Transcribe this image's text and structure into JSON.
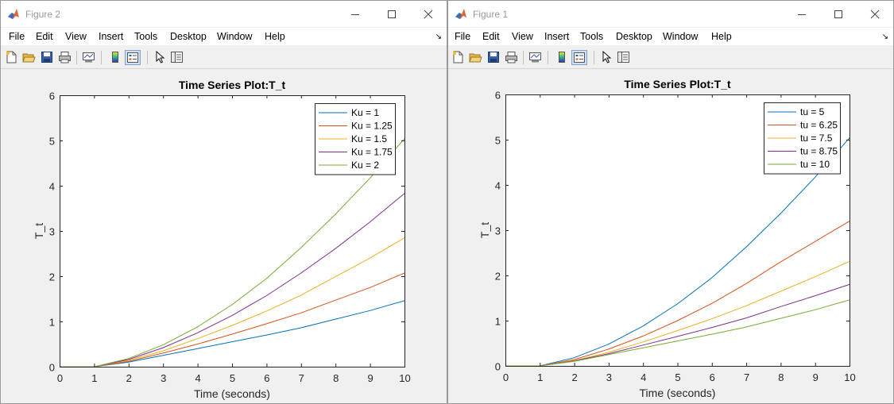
{
  "menu": [
    "File",
    "Edit",
    "View",
    "Insert",
    "Tools",
    "Desktop",
    "Window",
    "Help"
  ],
  "menu_overflow": "↘",
  "icons": {
    "app": "matlab-logo-icon",
    "toolbar": [
      "new-figure-icon",
      "open-file-icon",
      "save-icon",
      "print-icon",
      "link-plot-icon",
      "insert-colorbar-icon",
      "insert-legend-icon",
      "edit-plot-pointer-icon",
      "property-inspector-icon"
    ]
  },
  "colors": {
    "series": [
      "#0072BD",
      "#D95319",
      "#EDB120",
      "#7E2F8E",
      "#77AC30"
    ],
    "figure_bg": "#f0f0f0",
    "axes_bg": "#ffffff"
  },
  "windows": [
    {
      "title": "Figure 2",
      "chart_data": {
        "type": "line",
        "title": "Time Series Plot:T_t",
        "xlabel": "Time (seconds)",
        "ylabel": "T_t",
        "xlim": [
          0,
          10
        ],
        "ylim": [
          0,
          6
        ],
        "xticks": [
          "0",
          "1",
          "2",
          "3",
          "4",
          "5",
          "6",
          "7",
          "8",
          "9",
          "10"
        ],
        "yticks": [
          "0",
          "1",
          "2",
          "3",
          "4",
          "5",
          "6"
        ],
        "grid": false,
        "legend_position": "top-right",
        "x": [
          0,
          1,
          2,
          3,
          4,
          5,
          6,
          7,
          8,
          9,
          10
        ],
        "series": [
          {
            "name": "Ku = 1",
            "values": [
              0,
              0,
              0.1,
              0.25,
              0.4,
              0.55,
              0.7,
              0.86,
              1.05,
              1.24,
              1.46
            ]
          },
          {
            "name": "Ku = 1.25",
            "values": [
              0,
              0,
              0.12,
              0.3,
              0.5,
              0.72,
              0.95,
              1.19,
              1.47,
              1.75,
              2.07
            ]
          },
          {
            "name": "Ku = 1.5",
            "values": [
              0,
              0,
              0.14,
              0.35,
              0.62,
              0.91,
              1.23,
              1.58,
              1.99,
              2.4,
              2.85
            ]
          },
          {
            "name": "Ku = 1.75",
            "values": [
              0,
              0,
              0.16,
              0.42,
              0.75,
              1.13,
              1.57,
              2.07,
              2.61,
              3.2,
              3.83
            ]
          },
          {
            "name": "Ku = 2",
            "values": [
              0,
              0,
              0.18,
              0.48,
              0.88,
              1.37,
              1.95,
              2.63,
              3.37,
              4.17,
              5.04
            ]
          }
        ]
      }
    },
    {
      "title": "Figure 1",
      "chart_data": {
        "type": "line",
        "title": "Time Series Plot:T_t",
        "xlabel": "Time (seconds)",
        "ylabel": "T_t",
        "xlim": [
          0,
          10
        ],
        "ylim": [
          0,
          6
        ],
        "xticks": [
          "0",
          "1",
          "2",
          "3",
          "4",
          "5",
          "6",
          "7",
          "8",
          "9",
          "10"
        ],
        "yticks": [
          "0",
          "1",
          "2",
          "3",
          "4",
          "5",
          "6"
        ],
        "grid": false,
        "legend_position": "top-right",
        "x": [
          0,
          1,
          2,
          3,
          4,
          5,
          6,
          7,
          8,
          9,
          10
        ],
        "series": [
          {
            "name": "tu = 5",
            "values": [
              0,
              0,
              0.18,
              0.48,
              0.88,
              1.37,
              1.95,
              2.63,
              3.37,
              4.17,
              5.04
            ]
          },
          {
            "name": "tu = 6.25",
            "values": [
              0,
              0,
              0.14,
              0.37,
              0.66,
              1.0,
              1.38,
              1.82,
              2.3,
              2.75,
              3.2
            ]
          },
          {
            "name": "tu = 7.5",
            "values": [
              0,
              0,
              0.12,
              0.3,
              0.53,
              0.78,
              1.04,
              1.33,
              1.65,
              1.97,
              2.31
            ]
          },
          {
            "name": "tu = 8.75",
            "values": [
              0,
              0,
              0.11,
              0.27,
              0.46,
              0.65,
              0.85,
              1.06,
              1.31,
              1.55,
              1.8
            ]
          },
          {
            "name": "tu = 10",
            "values": [
              0,
              0,
              0.1,
              0.25,
              0.4,
              0.55,
              0.7,
              0.86,
              1.05,
              1.24,
              1.46
            ]
          }
        ]
      }
    }
  ]
}
